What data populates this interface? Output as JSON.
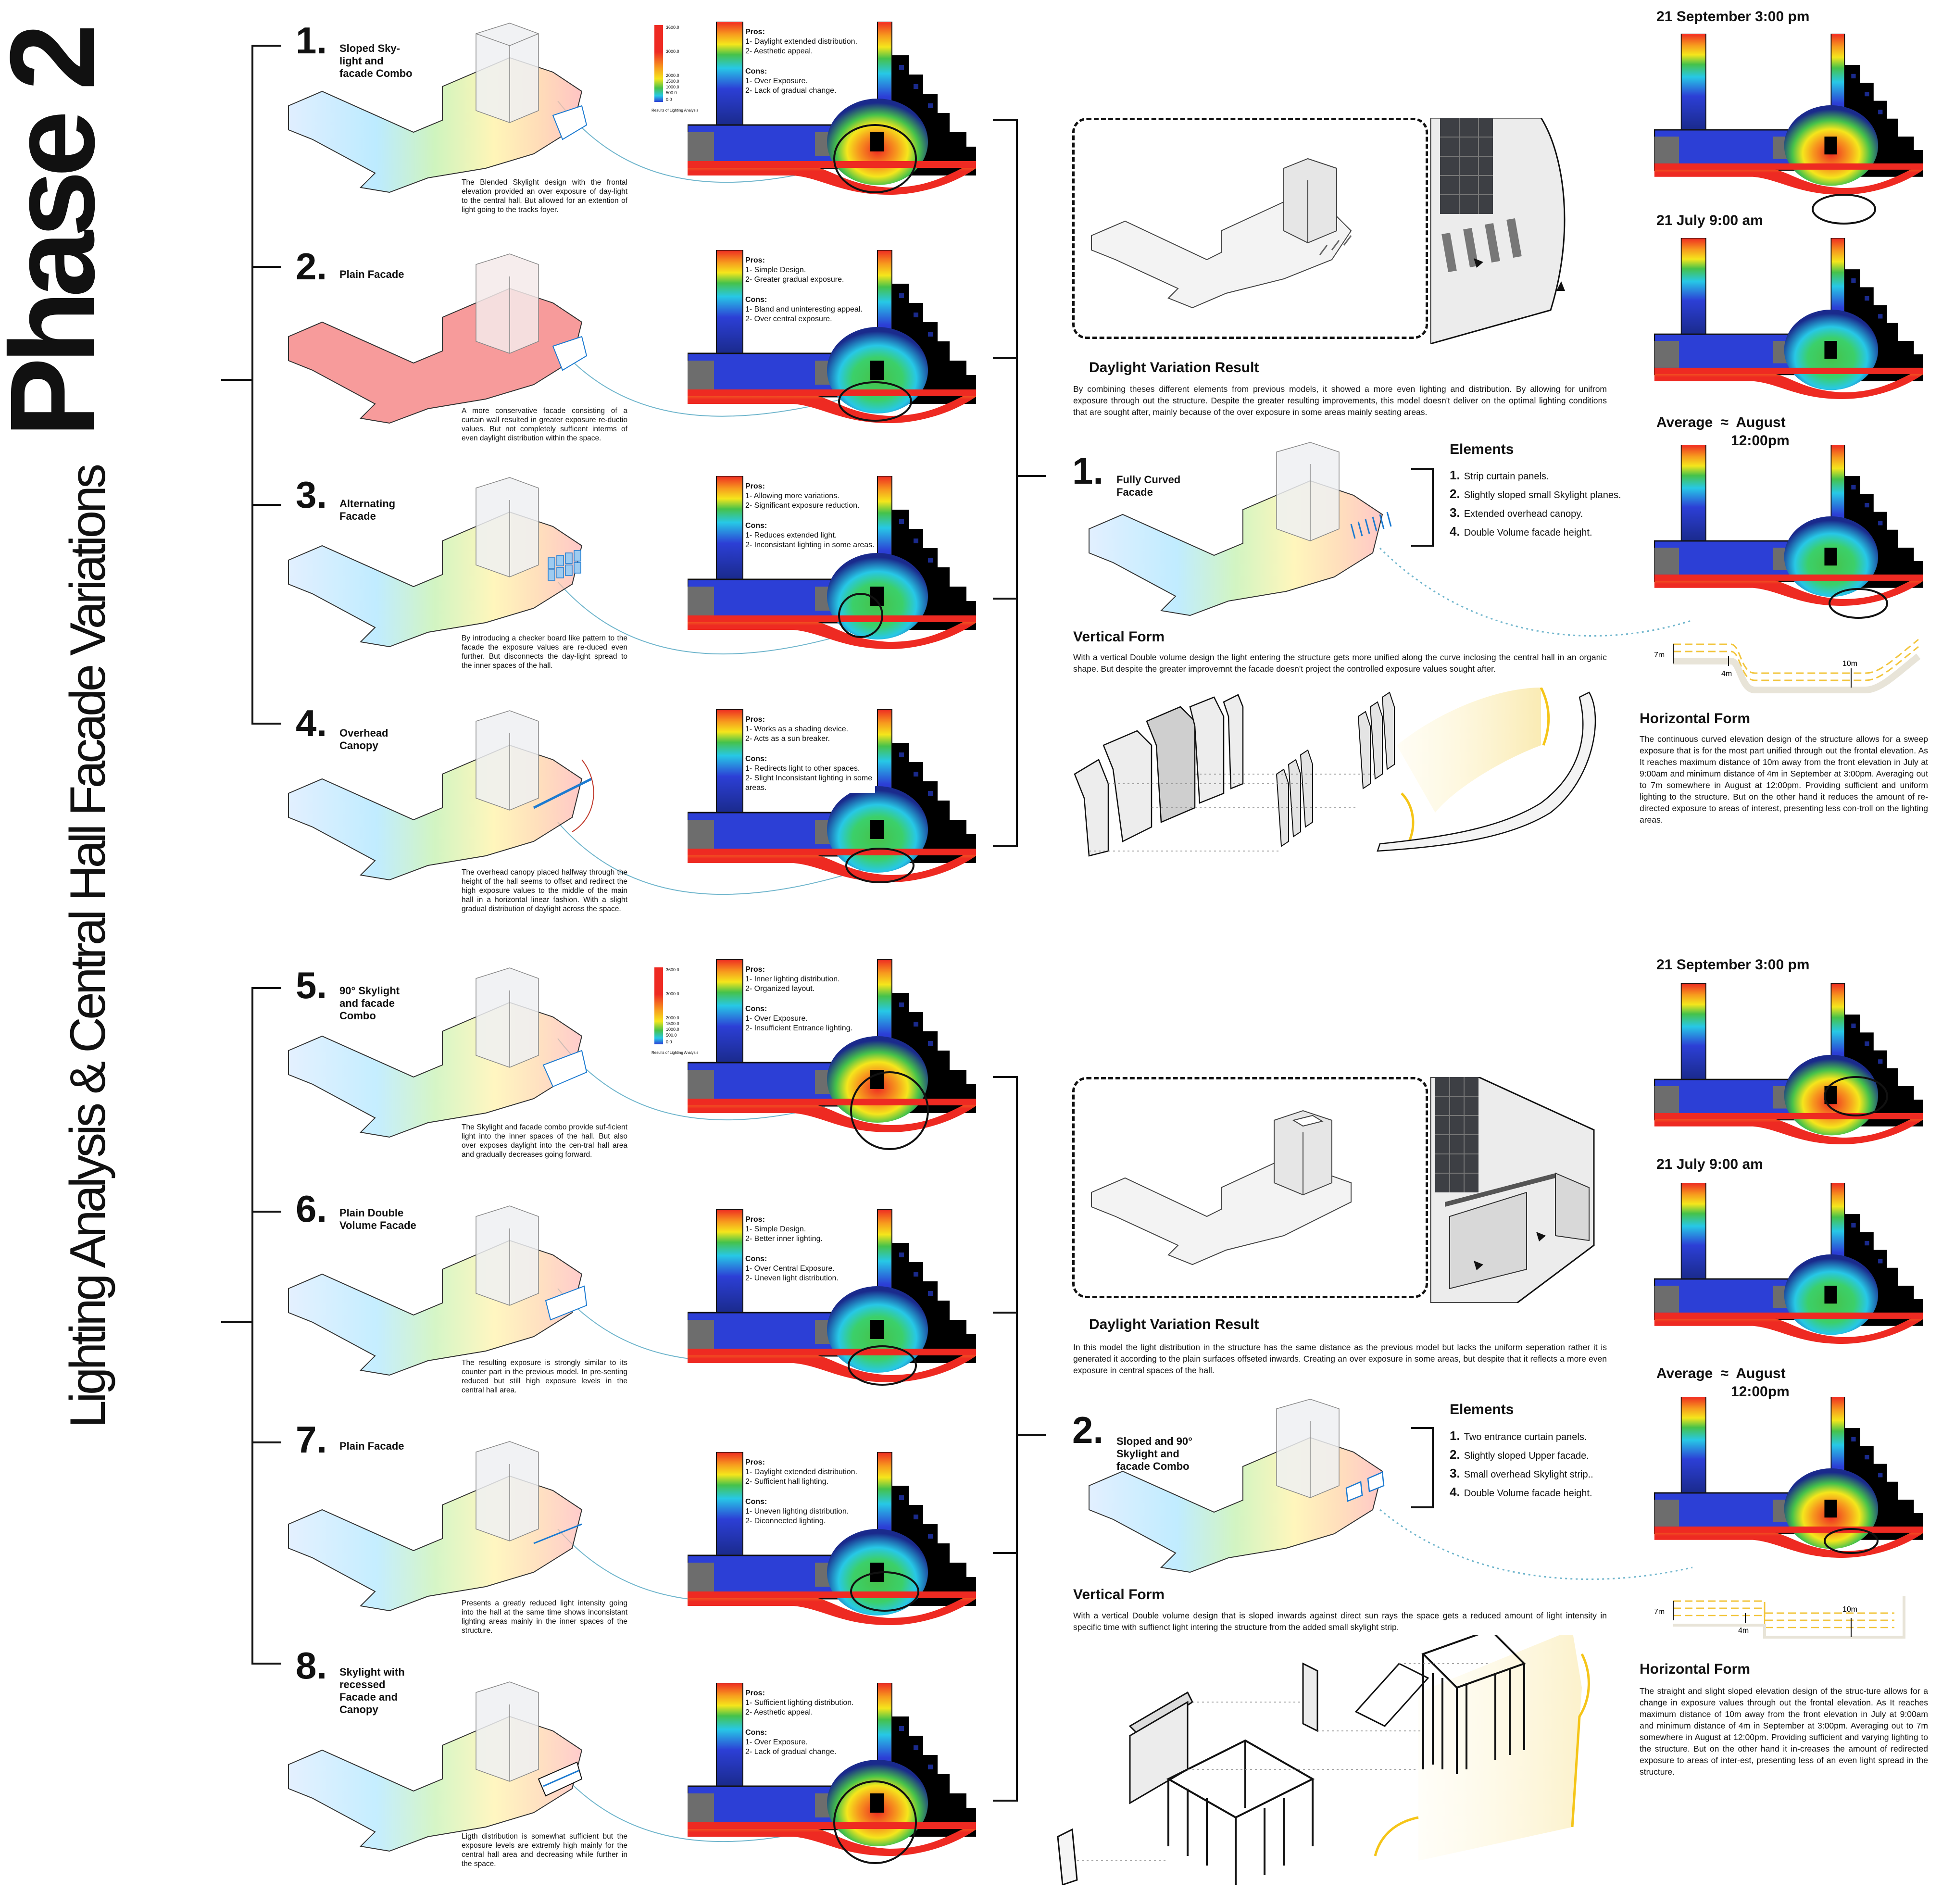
{
  "page": {
    "phase_title": "Phase 2",
    "subtitle": "Lighting Analysis & Central Hall Facade Variations"
  },
  "legend": {
    "max": "3600.0",
    "ticks": [
      "3000.0",
      "2000.0",
      "1500.0",
      "1000.0",
      "500.0",
      "0.0"
    ],
    "caption": "Results of Lighting Analysis"
  },
  "variations": [
    {
      "num": "1.",
      "title": "Sloped Sky-light and facade Combo",
      "desc": "The Blended Skylight design with the frontal elevation provided an over exposure of day-light to the central hall. But allowed for an extention of light going to the tracks foyer.",
      "pros_label": "Pros:",
      "pros": [
        "1- Daylight extended distribution.",
        "2- Aesthetic appeal."
      ],
      "cons_label": "Cons:",
      "cons": [
        "1- Over Exposure.",
        "2- Lack of gradual change."
      ]
    },
    {
      "num": "2.",
      "title": "Plain Facade",
      "desc": "A more conservative facade consisting of a curtain wall resulted in greater exposure re-ductio values. But not completely sufficent interms of even daylight distribution within the space.",
      "pros_label": "Pros:",
      "pros": [
        "1- Simple Design.",
        "2- Greater gradual exposure."
      ],
      "cons_label": "Cons:",
      "cons": [
        "1- Bland and uninteresting appeal.",
        "2- Over central exposure."
      ]
    },
    {
      "num": "3.",
      "title": "Alternating Facade",
      "desc": "By introducing a checker board like pattern to the facade the exposure values are re-duced even further. But disconnects the day-light spread to the inner spaces of the hall.",
      "pros_label": "Pros:",
      "pros": [
        "1- Allowing more variations.",
        "2- Significant exposure reduction."
      ],
      "cons_label": "Cons:",
      "cons": [
        "1- Reduces extended light.",
        "2- Inconsistant lighting in some areas."
      ]
    },
    {
      "num": "4.",
      "title": "Overhead Canopy",
      "desc": "The overhead canopy placed halfway through the height of the hall seems to offset and redirect the high exposure values to the middle of the main hall in a horizontal linear fashion. With a slight gradual distribution of daylight across the space.",
      "pros_label": "Pros:",
      "pros": [
        "1- Works as a shading device.",
        "2- Acts as a sun breaker."
      ],
      "cons_label": "Cons:",
      "cons": [
        "1- Redirects light to other spaces.",
        "2- Slight Inconsistant lighting in some areas."
      ]
    },
    {
      "num": "5.",
      "title": "90° Skylight and facade Combo",
      "desc": "The Skylight and facade combo provide suf-ficient light into the inner spaces of the hall. But also over exposes daylight into the cen-tral hall area and gradually decreases going forward.",
      "pros_label": "Pros:",
      "pros": [
        "1- Inner lighting distribution.",
        "2- Organized layout."
      ],
      "cons_label": "Cons:",
      "cons": [
        "1- Over Exposure.",
        "2- Insufficient Entrance lighting."
      ]
    },
    {
      "num": "6.",
      "title": "Plain Double Volume Facade",
      "desc": "The resulting exposure is strongly similar to its counter part in the previous model. In pre-senting reduced but still high exposure levels in the central hall area.",
      "pros_label": "Pros:",
      "pros": [
        "1- Simple Design.",
        "2- Better inner lighting."
      ],
      "cons_label": "Cons:",
      "cons": [
        "1- Over Central Exposure.",
        "2- Uneven light distribution."
      ]
    },
    {
      "num": "7.",
      "title": "Plain Facade",
      "desc": "Presents a greatly reduced light intensity going into the hall at the same time shows inconsistant lighting areas mainly in the inner spaces of the structure.",
      "pros_label": "Pros:",
      "pros": [
        "1- Daylight extended distribution.",
        "2- Sufficient hall lighting."
      ],
      "cons_label": "Cons:",
      "cons": [
        "1- Uneven lighting distribution.",
        "2- Diconnected lighting."
      ]
    },
    {
      "num": "8.",
      "title": "Skylight with recessed Facade and Canopy",
      "desc": "Ligth distribution is somewhat sufficient but the exposure levels are extremly high mainly for the central hall area and decreasing while further in the space.",
      "pros_label": "Pros:",
      "pros": [
        "1- Sufficient lighting distribution.",
        "2- Aesthetic appeal."
      ],
      "cons_label": "Cons:",
      "cons": [
        "1- Over Exposure.",
        "2- Lack of gradual change."
      ]
    }
  ],
  "results": [
    {
      "daylight_heading": "Daylight Variation Result",
      "daylight_text": "By combining theses different elements from previous models, it showed a more even lighting and distribution. By allowing for unifrom exposure through out the structure. Despite the greater resulting improvements, this model doesn't deliver on the optimal lighting conditions that are sought after, mainly because of the over exposure in some areas mainly seating areas.",
      "num": "1.",
      "title": "Fully Curved Facade",
      "elements_heading": "Elements",
      "elements": [
        {
          "n": "1.",
          "t": "Strip curtain panels."
        },
        {
          "n": "2.",
          "t": "Slightly sloped small Skylight planes."
        },
        {
          "n": "3.",
          "t": "Extended overhead canopy."
        },
        {
          "n": "4.",
          "t": "Double Volume facade height."
        }
      ],
      "vertical_heading": "Vertical Form",
      "vertical_text": "With a vertical Double volume design the light entering the structure gets more unified along the curve inclosing the central hall in an organic shape. But despite the greater improvemnt the facade doesn't project the controlled exposure values sought after.",
      "sim_labels": [
        "21 September 3:00 pm",
        "21 July 9:00 am"
      ],
      "average_label": "Average",
      "approx": "≈",
      "average_month": "August",
      "average_time": "12:00pm",
      "dims": {
        "a": "7m",
        "b": "10m",
        "c": "4m"
      },
      "horizontal_heading": "Horizontal Form",
      "horizontal_text": "The continuous curved elevation design of the structure allows for a sweep exposure that is for the most part unified through out the frontal elevation. As It reaches maximum distance of 10m away from the front elevation in July at 9:00am and minimum distance of 4m in September at 3:00pm. Averaging out to 7m somewhere in August at 12:00pm. Providing sufficient and uniform lighting to the structure. But on the other hand it reduces the amount of re-directed exposure to areas of interest, presenting less con-troll on the lighting areas."
    },
    {
      "daylight_heading": "Daylight Variation Result",
      "daylight_text": "In this model the light distribution in the structure has the same distance as the previous model but lacks the uniform seperation rather it is generated it according to the plain surfaces offseted inwards. Creating an over exposure in some areas, but despite that it reflects a more even exposure in central spaces of the hall.",
      "num": "2.",
      "title": "Sloped and 90° Skylight and facade Combo",
      "elements_heading": "Elements",
      "elements": [
        {
          "n": "1.",
          "t": "Two entrance curtain panels."
        },
        {
          "n": "2.",
          "t": "Slightly sloped Upper facade."
        },
        {
          "n": "3.",
          "t": "Small overhead Skylight strip.."
        },
        {
          "n": "4.",
          "t": "Double Volume facade height."
        }
      ],
      "vertical_heading": "Vertical Form",
      "vertical_text": "With a vertical Double volume design that is sloped inwards against direct sun rays the space gets a reduced amount of light intensity in specific time with suffienct light intering the structure from the added small skylight strip.",
      "sim_labels": [
        "21 September 3:00 pm",
        "21 July 9:00 am"
      ],
      "average_label": "Average",
      "approx": "≈",
      "average_month": "August",
      "average_time": "12:00pm",
      "dims": {
        "a": "7m",
        "b": "10m",
        "c": "4m"
      },
      "horizontal_heading": "Horizontal Form",
      "horizontal_text": "The straight and slight sloped elevation design of the struc-ture allows for a change in exposure values through out the frontal elevation. As It reaches maximum distance of 10m away from the front elevation in July at 9:00am and minimum distance of 4m in September at 3:00pm. Averaging out to 7m somewhere in August at 12:00pm. Providing sufficient and varying lighting to the structure. But on the other hand it in-creases the amount of redirected exposure to areas of inter-est, presenting less of an even light spread in the structure."
    }
  ],
  "colors": {
    "red": "#ee2a22",
    "orange": "#f79a1e",
    "yellow": "#f5e61c",
    "green": "#46c24a",
    "cyan": "#27c8e6",
    "blue": "#2c3fd6",
    "navy": "#111a6b",
    "black": "#000000",
    "pink": "#f7a6a6",
    "sun": "#f7e6a0"
  }
}
